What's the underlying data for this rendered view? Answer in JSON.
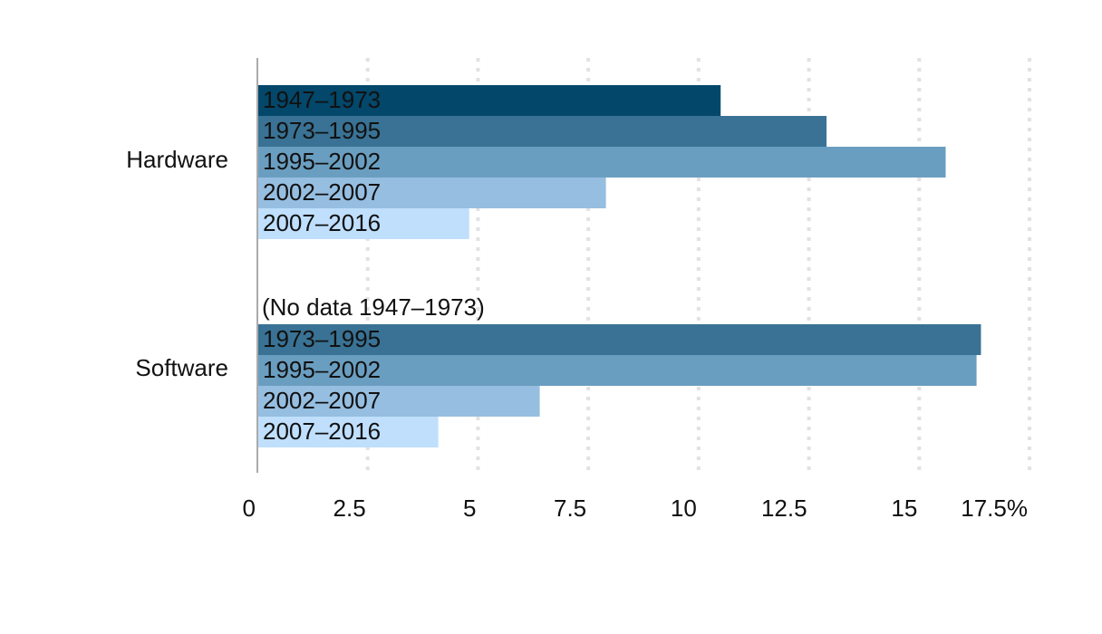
{
  "chart_data": {
    "type": "grouped-hbar",
    "categories": [
      "Hardware",
      "Software"
    ],
    "series": [
      {
        "name": "1947–1973",
        "color": "#03476a",
        "values": [
          10.5,
          null
        ]
      },
      {
        "name": "1973–1995",
        "color": "#397294",
        "values": [
          12.9,
          16.4
        ]
      },
      {
        "name": "1995–2002",
        "color": "#6a9ec0",
        "values": [
          15.6,
          16.3
        ]
      },
      {
        "name": "2002–2007",
        "color": "#96bee0",
        "values": [
          7.9,
          6.4
        ]
      },
      {
        "name": "2007–2016",
        "color": "#bfdffd",
        "values": [
          4.8,
          4.1
        ]
      }
    ],
    "note": "(No data 1947–1973)",
    "xlim": [
      0,
      17.5
    ],
    "xticks": [
      0,
      2.5,
      5,
      7.5,
      10,
      12.5,
      15,
      {
        "value": 17.5,
        "label": "17.5%"
      }
    ],
    "grid": true
  }
}
